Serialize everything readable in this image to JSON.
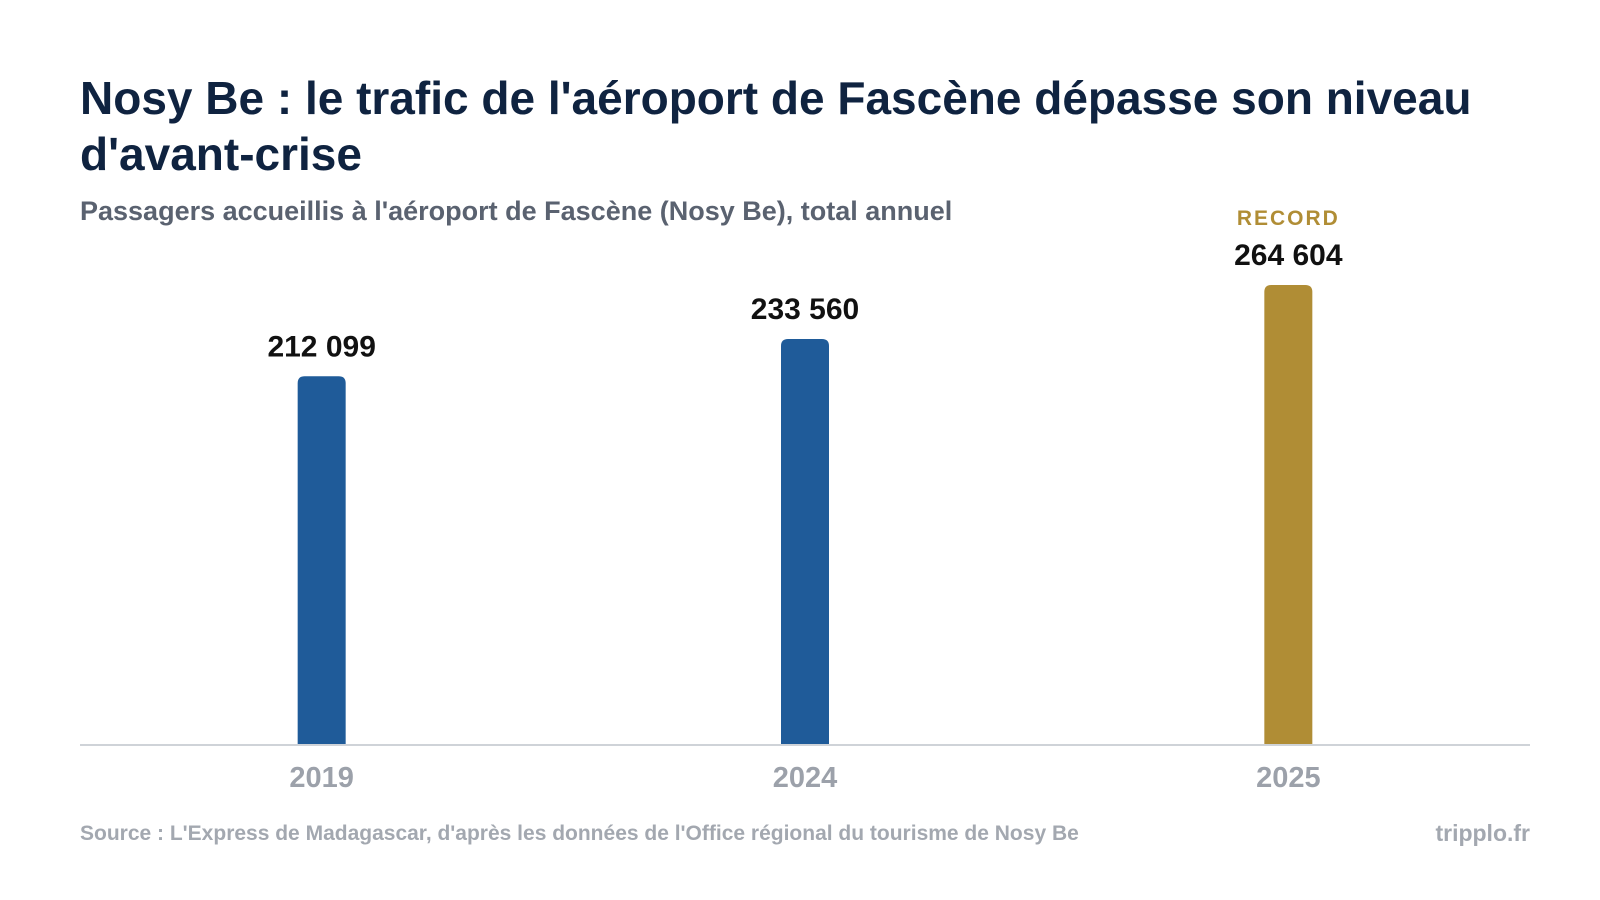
{
  "header": {
    "title": "Nosy Be : le trafic de l'aéroport de Fascène dépasse son niveau d'avant-crise",
    "subtitle": "Passagers accueillis à l'aéroport de Fascène (Nosy Be), total annuel"
  },
  "chart_data": {
    "type": "bar",
    "categories": [
      "2019",
      "2024",
      "2025"
    ],
    "values": [
      212099,
      233560,
      264604
    ],
    "value_labels": [
      "212 099",
      "233 560",
      "264 604"
    ],
    "annotations": [
      {
        "category": "2025",
        "text": "RECORD"
      }
    ],
    "colors": {
      "default_bar": "#1f5b99",
      "highlight_bar": "#b08d35",
      "highlight_text": "#b08d35",
      "value_label": "#111111",
      "tick_label": "#9ca1aa",
      "baseline": "#cfd3d8"
    },
    "highlight_index": 2,
    "ylim": [
      0,
      264604
    ],
    "grid": false,
    "legend": "none"
  },
  "footer": {
    "source": "Source : L'Express de Madagascar, d'après les données de l'Office régional du tourisme de Nosy Be",
    "brand": "tripplo.fr"
  }
}
